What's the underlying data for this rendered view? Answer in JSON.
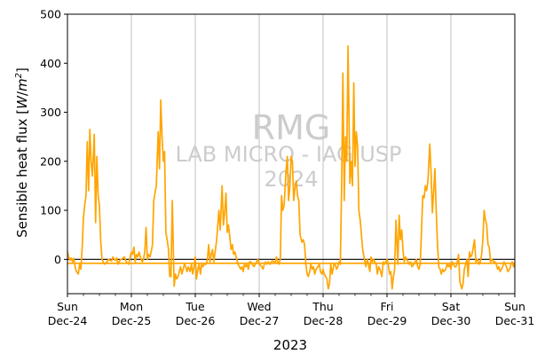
{
  "chart_data": {
    "type": "line",
    "title": "",
    "xlabel": "2023",
    "ylabel": "Sensible heat flux [W/m²]",
    "ylabel_parts": {
      "base": "Sensible heat flux [",
      "var": "W",
      "slash": "/",
      "unit": "m",
      "sup": "2",
      "close": "]"
    },
    "ylim": [
      -70,
      500
    ],
    "yticks": [
      0,
      100,
      200,
      300,
      400,
      500
    ],
    "xlim": [
      0,
      7
    ],
    "xticks": [
      {
        "pos": 0,
        "day": "Sun",
        "date": "Dec-24"
      },
      {
        "pos": 1,
        "day": "Mon",
        "date": "Dec-25"
      },
      {
        "pos": 2,
        "day": "Tue",
        "date": "Dec-26"
      },
      {
        "pos": 3,
        "day": "Wed",
        "date": "Dec-27"
      },
      {
        "pos": 4,
        "day": "Thu",
        "date": "Dec-28"
      },
      {
        "pos": 5,
        "day": "Fri",
        "date": "Dec-29"
      },
      {
        "pos": 6,
        "day": "Sat",
        "date": "Dec-30"
      },
      {
        "pos": 7,
        "day": "Sun",
        "date": "Dec-31"
      }
    ],
    "vertical_grid": true,
    "zero_line": 0,
    "mean_line": -8,
    "watermark": [
      "RMG",
      "LAB MICRO - IAG USP",
      "2024"
    ],
    "colors": {
      "series": "#FFA500",
      "grid": "#b0b0b0",
      "zero": "#000000",
      "watermark": "#cccccc"
    },
    "series": [
      {
        "x": [
          0.0,
          0.02,
          0.04,
          0.06,
          0.08,
          0.1,
          0.12,
          0.14,
          0.17,
          0.19,
          0.21,
          0.23,
          0.25,
          0.27,
          0.29,
          0.31,
          0.33,
          0.35,
          0.37,
          0.39,
          0.42,
          0.44,
          0.46,
          0.48,
          0.5,
          0.52,
          0.54,
          0.56,
          0.58,
          0.6,
          0.62,
          0.64,
          0.67,
          0.69,
          0.71,
          0.73,
          0.75,
          0.77,
          0.79,
          0.81,
          0.83,
          0.85,
          0.87,
          0.89,
          0.92,
          0.94,
          0.96,
          0.98,
          1.0,
          1.02,
          1.04,
          1.06,
          1.08,
          1.1,
          1.12,
          1.14,
          1.17,
          1.19,
          1.21,
          1.23,
          1.25,
          1.27,
          1.29,
          1.31,
          1.33,
          1.35,
          1.37,
          1.39,
          1.42,
          1.44,
          1.46,
          1.48,
          1.5,
          1.52,
          1.54,
          1.56,
          1.58,
          1.6,
          1.62,
          1.64,
          1.67,
          1.69,
          1.71,
          1.73,
          1.75,
          1.77,
          1.79,
          1.81,
          1.83,
          1.85,
          1.87,
          1.89,
          1.92,
          1.94,
          1.96,
          1.98,
          2.0,
          2.02,
          2.04,
          2.06,
          2.08,
          2.1,
          2.12,
          2.14,
          2.17,
          2.19,
          2.21,
          2.23,
          2.25,
          2.27,
          2.29,
          2.31,
          2.33,
          2.35,
          2.37,
          2.39,
          2.42,
          2.44,
          2.46,
          2.48,
          2.5,
          2.52,
          2.54,
          2.56,
          2.58,
          2.6,
          2.62,
          2.64,
          2.67,
          2.69,
          2.71,
          2.73,
          2.75,
          2.77,
          2.79,
          2.81,
          2.83,
          2.85,
          2.87,
          2.89,
          2.92,
          2.94,
          2.96,
          2.98,
          3.0,
          3.02,
          3.04,
          3.06,
          3.08,
          3.1,
          3.12,
          3.14,
          3.17,
          3.19,
          3.21,
          3.23,
          3.25,
          3.27,
          3.29,
          3.31,
          3.33,
          3.35,
          3.37,
          3.39,
          3.42,
          3.44,
          3.46,
          3.48,
          3.5,
          3.52,
          3.54,
          3.56,
          3.58,
          3.6,
          3.62,
          3.64,
          3.67,
          3.69,
          3.71,
          3.73,
          3.75,
          3.77,
          3.79,
          3.81,
          3.83,
          3.85,
          3.87,
          3.89,
          3.92,
          3.94,
          3.96,
          3.98,
          4.0,
          4.02,
          4.04,
          4.06,
          4.08,
          4.1,
          4.12,
          4.14,
          4.17,
          4.19,
          4.21,
          4.23,
          4.25,
          4.27,
          4.29,
          4.31,
          4.33,
          4.35,
          4.37,
          4.39,
          4.42,
          4.44,
          4.46,
          4.48,
          4.5,
          4.52,
          4.54,
          4.56,
          4.58,
          4.6,
          4.62,
          4.64,
          4.67,
          4.69,
          4.71,
          4.73,
          4.75,
          4.77,
          4.79,
          4.81,
          4.83,
          4.85,
          4.87,
          4.89,
          4.92,
          4.94,
          4.96,
          4.98,
          5.0,
          5.02,
          5.04,
          5.06,
          5.08,
          5.1,
          5.12,
          5.14,
          5.17,
          5.19,
          5.21,
          5.23,
          5.25,
          5.27,
          5.29,
          5.31,
          5.33,
          5.35,
          5.37,
          5.39,
          5.42,
          5.44,
          5.46,
          5.48,
          5.5,
          5.52,
          5.54,
          5.56,
          5.58,
          5.6,
          5.62,
          5.64,
          5.67,
          5.69,
          5.71,
          5.73,
          5.75,
          5.77,
          5.79,
          5.81,
          5.83,
          5.85,
          5.87,
          5.89,
          5.92,
          5.94,
          5.96,
          5.98,
          6.0,
          6.02,
          6.04,
          6.06,
          6.08,
          6.1,
          6.12,
          6.14,
          6.17,
          6.19,
          6.21,
          6.23,
          6.25,
          6.27,
          6.29,
          6.31,
          6.33,
          6.35,
          6.37,
          6.39,
          6.42,
          6.44,
          6.46,
          6.48,
          6.5,
          6.52,
          6.54,
          6.56,
          6.58,
          6.6,
          6.62,
          6.64,
          6.67,
          6.69,
          6.71,
          6.73,
          6.75,
          6.77,
          6.79,
          6.81,
          6.83,
          6.85,
          6.87,
          6.89,
          6.92,
          6.94,
          6.96,
          6.98,
          7.0
        ],
        "values": [
          15,
          5,
          -2,
          3,
          -5,
          2,
          -15,
          -25,
          -30,
          -10,
          -20,
          25,
          85,
          110,
          130,
          240,
          140,
          265,
          200,
          170,
          255,
          75,
          210,
          130,
          110,
          40,
          0,
          -5,
          -10,
          -8,
          -5,
          0,
          -2,
          -3,
          5,
          0,
          -2,
          3,
          -10,
          -5,
          0,
          0,
          3,
          5,
          -5,
          -8,
          -10,
          5,
          15,
          10,
          25,
          -5,
          10,
          5,
          15,
          5,
          -5,
          0,
          15,
          65,
          0,
          10,
          5,
          15,
          30,
          120,
          135,
          150,
          260,
          185,
          325,
          250,
          200,
          220,
          55,
          40,
          20,
          -35,
          -35,
          120,
          -55,
          -30,
          -40,
          -35,
          -25,
          -15,
          -30,
          -20,
          -10,
          -15,
          -25,
          -15,
          -25,
          -10,
          -30,
          -15,
          5,
          -40,
          -20,
          -10,
          -30,
          -10,
          -15,
          -10,
          -10,
          0,
          30,
          -5,
          10,
          20,
          -5,
          15,
          35,
          65,
          100,
          60,
          150,
          70,
          95,
          135,
          55,
          70,
          45,
          20,
          30,
          10,
          15,
          5,
          -10,
          -15,
          -20,
          -15,
          -25,
          -10,
          -15,
          -10,
          -20,
          -5,
          -5,
          -10,
          -15,
          -10,
          -5,
          0,
          -10,
          -12,
          -15,
          -20,
          -10,
          -5,
          -10,
          -5,
          -10,
          -5,
          -3,
          -5,
          -8,
          5,
          -5,
          -10,
          0,
          130,
          100,
          110,
          180,
          210,
          120,
          150,
          210,
          200,
          120,
          145,
          160,
          130,
          120,
          50,
          35,
          40,
          30,
          -10,
          -30,
          -35,
          -25,
          -10,
          -20,
          -15,
          -30,
          -20,
          -15,
          -10,
          -25,
          -30,
          -20,
          -30,
          -35,
          -40,
          -60,
          -50,
          -10,
          -30,
          -10,
          -10,
          -20,
          -15,
          -5,
          -10,
          150,
          380,
          120,
          250,
          200,
          435,
          155,
          200,
          150,
          360,
          190,
          260,
          230,
          100,
          80,
          50,
          20,
          5,
          -15,
          0,
          -10,
          -25,
          5,
          -5,
          0,
          -5,
          -10,
          -30,
          -15,
          -20,
          -35,
          -5,
          -10,
          -5,
          0,
          -10,
          -30,
          -25,
          -60,
          -35,
          -20,
          80,
          -10,
          90,
          40,
          60,
          20,
          -5,
          5,
          0,
          -5,
          -10,
          -5,
          -15,
          -10,
          -5,
          0,
          -15,
          -20,
          -10,
          60,
          130,
          125,
          150,
          140,
          160,
          235,
          175,
          95,
          140,
          185,
          100,
          30,
          -15,
          -20,
          -30,
          -20,
          -25,
          -20,
          -10,
          -15,
          -10,
          -20,
          -5,
          -10,
          -15,
          -15,
          -5,
          10,
          -45,
          -60,
          -50,
          -20,
          -10,
          0,
          -35,
          15,
          5,
          10,
          25,
          40,
          -5,
          0,
          -10,
          -5,
          10,
          40,
          100,
          80,
          70,
          30,
          25,
          -5,
          0,
          -5,
          -5,
          -10,
          -20,
          -15,
          -25,
          -20,
          -15,
          -5,
          -10,
          -15,
          -25,
          -20,
          -10,
          -5,
          -15,
          -10
        ]
      }
    ]
  }
}
